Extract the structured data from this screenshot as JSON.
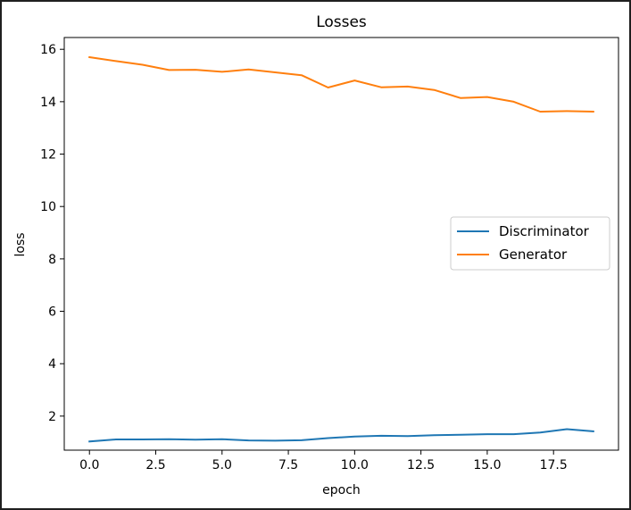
{
  "chart_data": {
    "type": "line",
    "title": "Losses",
    "xlabel": "epoch",
    "ylabel": "loss",
    "x": [
      0,
      1,
      2,
      3,
      4,
      5,
      6,
      7,
      8,
      9,
      10,
      11,
      12,
      13,
      14,
      15,
      16,
      17,
      18,
      19
    ],
    "xlim": [
      -0.95,
      19.95
    ],
    "ylim": [
      0.7,
      16.45
    ],
    "xticks": [
      0.0,
      2.5,
      5.0,
      7.5,
      10.0,
      12.5,
      15.0,
      17.5
    ],
    "xtick_labels": [
      "0.0",
      "2.5",
      "5.0",
      "7.5",
      "10.0",
      "12.5",
      "15.0",
      "17.5"
    ],
    "yticks": [
      2,
      4,
      6,
      8,
      10,
      12,
      14,
      16
    ],
    "ytick_labels": [
      "2",
      "4",
      "6",
      "8",
      "10",
      "12",
      "14",
      "16"
    ],
    "grid": false,
    "legend_position": "center right",
    "series": [
      {
        "name": "Discriminator",
        "color": "#1f77b4",
        "values": [
          1.03,
          1.11,
          1.11,
          1.12,
          1.1,
          1.12,
          1.07,
          1.06,
          1.08,
          1.16,
          1.22,
          1.25,
          1.24,
          1.27,
          1.29,
          1.31,
          1.31,
          1.37,
          1.5,
          1.42
        ]
      },
      {
        "name": "Generator",
        "color": "#ff7f0e",
        "values": [
          15.7,
          15.55,
          15.41,
          15.21,
          15.22,
          15.14,
          15.23,
          15.12,
          15.01,
          14.54,
          14.81,
          14.55,
          14.58,
          14.45,
          14.14,
          14.18,
          14.0,
          13.62,
          13.64,
          13.62
        ]
      }
    ]
  }
}
